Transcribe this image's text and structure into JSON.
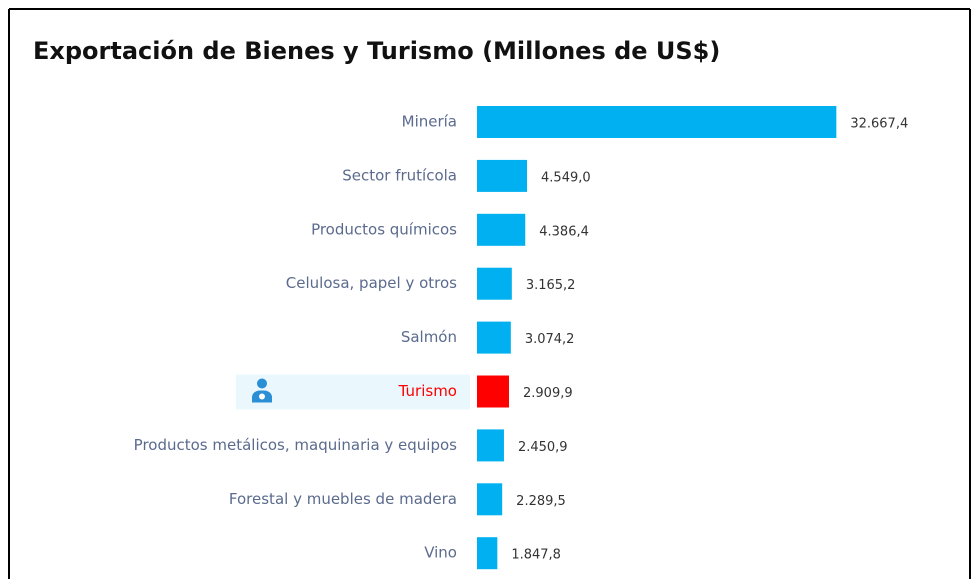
{
  "chart_data": {
    "type": "bar",
    "orientation": "horizontal",
    "title": "Exportación de Bienes y Turismo (Millones de US$)",
    "categories": [
      "Minería",
      "Sector frutícola",
      "Productos químicos",
      "Celulosa, papel y otros",
      "Salmón",
      "Turismo",
      "Productos metálicos, maquinaria y equipos",
      "Forestal y muebles de madera",
      "Vino"
    ],
    "values": [
      32667.4,
      4549.0,
      4386.4,
      3165.2,
      3074.2,
      2909.9,
      2450.9,
      2289.5,
      1847.8
    ],
    "value_labels": [
      "32.667,4",
      "4.549,0",
      "4.386,4",
      "3.165,2",
      "3.074,2",
      "2.909,9",
      "2.450,9",
      "2.289,5",
      "1.847,8"
    ],
    "color": "#00b0f0",
    "highlight": "Turismo",
    "highlight_color": "#ff0000",
    "xlim": [
      0,
      33000
    ]
  }
}
